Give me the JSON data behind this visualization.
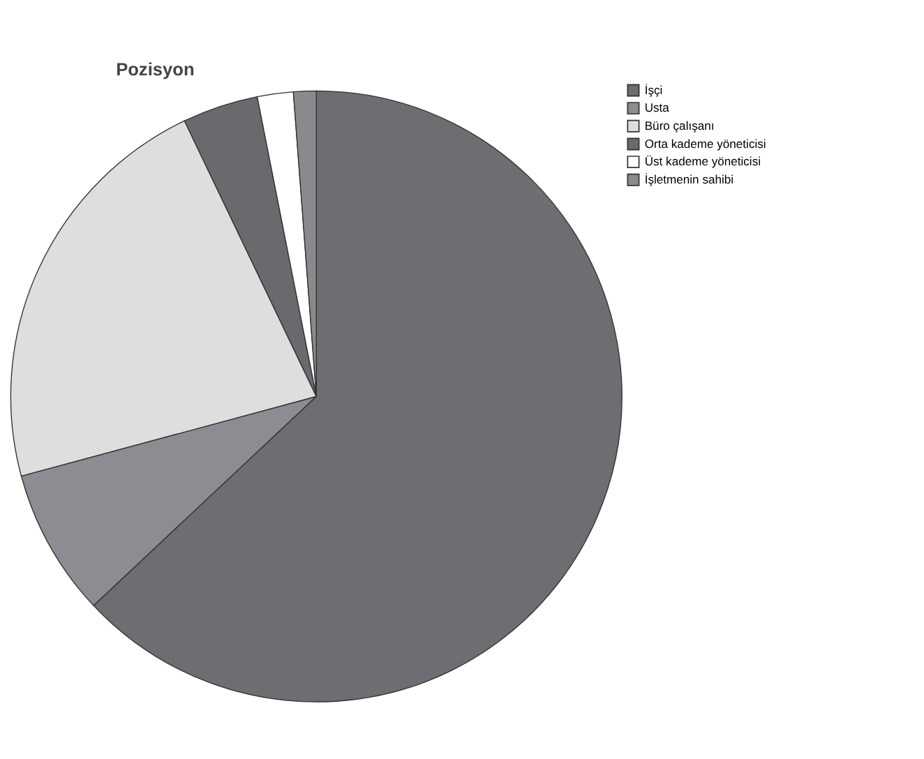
{
  "chart_data": {
    "type": "pie",
    "title": "Pozisyon",
    "categories": [
      "İşçi",
      "Usta",
      "Büro çalışanı",
      "Orta kademe yöneticisi",
      "Üst kademe yöneticisi",
      "İşletmenin sahibi"
    ],
    "values": [
      63.0,
      7.8,
      22.1,
      4.0,
      1.9,
      1.2
    ],
    "colors": [
      "#6e6e72",
      "#8c8c92",
      "#dedede",
      "#6a6a6e",
      "#ffffff",
      "#8a8a8e"
    ],
    "legend": "top right"
  }
}
